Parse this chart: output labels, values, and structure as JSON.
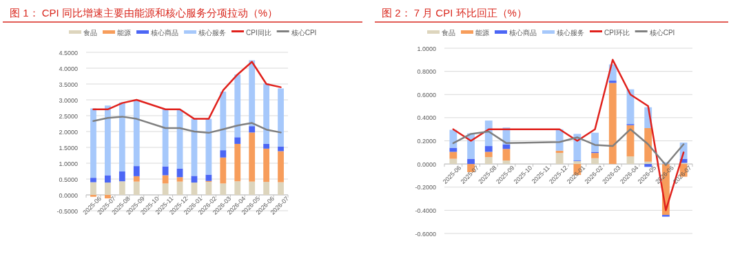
{
  "chart_data": [
    {
      "type": "bar",
      "title": "图 1： CPI 同比增速主要由能源和核心服务分项拉动（%）",
      "stacked": true,
      "grid": "y",
      "legend": "top",
      "categories": [
        "2025-06",
        "2025-07",
        "2025-08",
        "2025-09",
        "2025-10",
        "2025-11",
        "2025-12",
        "2026-01",
        "2026-02",
        "2026-03",
        "2026-04",
        "2026-05",
        "2026-06",
        "2026-07"
      ],
      "ylim": [
        -0.5,
        4.5
      ],
      "yticks": [
        {
          "value": -0.5,
          "label": "-0.5000"
        },
        {
          "value": 0,
          "label": "0.0000"
        },
        {
          "value": 0.5,
          "label": "0.5000"
        },
        {
          "value": 1,
          "label": "1.0000"
        },
        {
          "value": 1.5,
          "label": "1.5000"
        },
        {
          "value": 2,
          "label": "2.0000"
        },
        {
          "value": 2.5,
          "label": "2.5000"
        },
        {
          "value": 3,
          "label": "3.0000"
        },
        {
          "value": 3.5,
          "label": "3.5000"
        },
        {
          "value": 4,
          "label": "4.0000"
        },
        {
          "value": 4.5,
          "label": "4.5000"
        }
      ],
      "series": [
        {
          "name": "食品",
          "type": "bar",
          "color": "#ddd5bd",
          "values": [
            0.4,
            0.39,
            0.43,
            0.42,
            null,
            0.36,
            0.42,
            0.39,
            0.41,
            0.36,
            0.43,
            0.42,
            0.41,
            0.4
          ]
        },
        {
          "name": "能源",
          "type": "bar",
          "color": "#f79d5b",
          "values": [
            -0.06,
            -0.11,
            0,
            0.17,
            null,
            0.26,
            0.14,
            0,
            0.03,
            0.82,
            1.18,
            1.55,
            1.05,
            0.98
          ]
        },
        {
          "name": "核心商品",
          "type": "bar",
          "color": "#4b66f5",
          "values": [
            0.14,
            0.23,
            0.31,
            0.32,
            null,
            0.28,
            0.27,
            0.21,
            0.2,
            0.23,
            0.21,
            0.2,
            0.15,
            0.15
          ]
        },
        {
          "name": "核心服务",
          "type": "bar",
          "color": "#a6c8fb",
          "values": [
            2.19,
            2.2,
            2.18,
            2.08,
            null,
            1.8,
            1.85,
            1.8,
            1.76,
            1.85,
            1.98,
            2.08,
            1.91,
            1.83
          ]
        },
        {
          "name": "CPI同比",
          "type": "line",
          "color": "#e0201b",
          "values": [
            2.7,
            2.7,
            2.9,
            3.0,
            null,
            2.7,
            2.7,
            2.4,
            2.4,
            3.3,
            3.8,
            4.2,
            3.5,
            3.4
          ]
        },
        {
          "name": "核心CPI",
          "type": "line",
          "color": "#7f7f7f",
          "values": [
            2.33,
            2.43,
            2.47,
            2.4,
            null,
            2.11,
            2.11,
            2.0,
            1.96,
            2.07,
            2.19,
            2.27,
            2.06,
            1.97
          ]
        }
      ]
    },
    {
      "type": "bar",
      "title": "图 2： 7 月 CPI 环比回正（%）",
      "stacked": true,
      "grid": "y",
      "legend": "top",
      "categories": [
        "2025-06",
        "2025-07",
        "2025-08",
        "2025-09",
        "2025-10",
        "2025-11",
        "2025-12",
        "2026-01",
        "2026-02",
        "2026-03",
        "2026-04",
        "2026-05",
        "2026-06",
        "2026-07"
      ],
      "ylim": [
        -0.6,
        1.0
      ],
      "yticks": [
        {
          "value": -0.6,
          "label": "-0.6000"
        },
        {
          "value": -0.4,
          "label": "-0.4000"
        },
        {
          "value": -0.2,
          "label": "-0.2000"
        },
        {
          "value": 0,
          "label": "0.0000"
        },
        {
          "value": 0.2,
          "label": "0.2000"
        },
        {
          "value": 0.4,
          "label": "0.4000"
        },
        {
          "value": 0.6,
          "label": "0.6000"
        },
        {
          "value": 0.8,
          "label": "0.8000"
        },
        {
          "value": 1.0,
          "label": "1.0000"
        }
      ],
      "series": [
        {
          "name": "食品",
          "type": "bar",
          "color": "#ddd5bd",
          "values": [
            0.045,
            0,
            0.06,
            0.03,
            null,
            null,
            0.095,
            0.025,
            0.05,
            null,
            0.065,
            0.02,
            null,
            0.01
          ]
        },
        {
          "name": "能源",
          "type": "bar",
          "color": "#f79d5b",
          "values": [
            0.06,
            -0.07,
            0.045,
            0.1,
            null,
            null,
            0.02,
            -0.095,
            0.045,
            0.7,
            0.27,
            0.29,
            -0.44,
            -0.11
          ]
        },
        {
          "name": "核心商品",
          "type": "bar",
          "color": "#4b66f5",
          "values": [
            0.035,
            0.045,
            0.05,
            0.04,
            null,
            null,
            0,
            0.005,
            0.01,
            0.02,
            0.01,
            -0.025,
            -0.015,
            0.035
          ]
        },
        {
          "name": "核心服务",
          "type": "bar",
          "color": "#a6c8fb",
          "values": [
            0.155,
            0.22,
            0.22,
            0.145,
            null,
            null,
            0.185,
            0.23,
            0.165,
            0.14,
            0.3,
            0.18,
            0.015,
            0.14
          ]
        },
        {
          "name": "CPI环比",
          "type": "line",
          "color": "#e0201b",
          "values": [
            0.3,
            0.2,
            0.3,
            0.3,
            null,
            null,
            0.3,
            0.2,
            0.3,
            0.9,
            0.6,
            0.5,
            -0.4,
            0.1
          ]
        },
        {
          "name": "核心CPI",
          "type": "line",
          "color": "#7f7f7f",
          "values": [
            0.18,
            0.26,
            0.28,
            0.18,
            null,
            null,
            0.19,
            0.23,
            0.165,
            0.155,
            0.3,
            0.17,
            -0.01,
            0.17
          ]
        }
      ]
    }
  ]
}
